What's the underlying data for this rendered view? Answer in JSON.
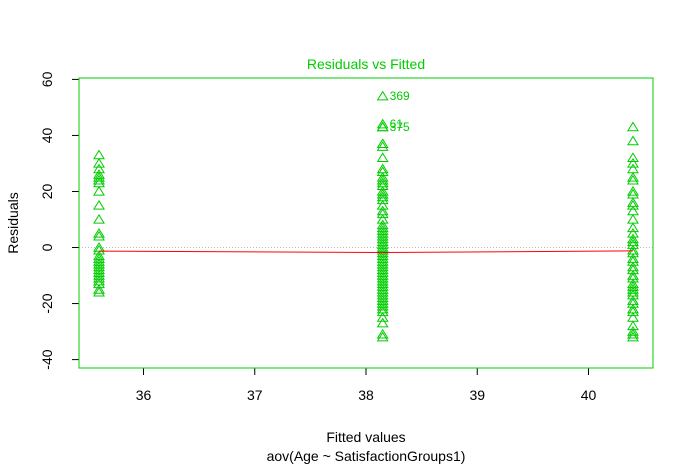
{
  "chart_data": {
    "type": "scatter",
    "title": "Residuals vs Fitted",
    "xlabel": "Fitted values",
    "subtitle": "aov(Age ~ SatisfactionGroups1)",
    "ylabel": "Residuals",
    "xlim": [
      35.42,
      40.58
    ],
    "ylim": [
      -43,
      60.5
    ],
    "xticks": [
      36,
      37,
      38,
      39,
      40
    ],
    "yticks": [
      -40,
      -20,
      0,
      20,
      40,
      60
    ],
    "grid": false,
    "reference_line": 0,
    "colors": {
      "points": "#00cc00",
      "title": "#00cc00",
      "frame": "#00cc00",
      "smooth": "#ff0000",
      "reference": "#bbbbbb"
    },
    "marker": "triangle-open",
    "groups": [
      {
        "x": 35.6,
        "residuals": [
          33,
          30,
          28,
          26,
          25,
          24,
          23,
          20,
          15,
          10,
          5,
          4,
          0,
          -1,
          -3,
          -4,
          -5,
          -6,
          -7,
          -8,
          -9,
          -10,
          -11,
          -12,
          -13,
          -15,
          -16
        ]
      },
      {
        "x": 38.15,
        "residuals": [
          54,
          44,
          43,
          43,
          37,
          36,
          32,
          28,
          27,
          25,
          24,
          23,
          22,
          20,
          19,
          18,
          17,
          15,
          13,
          12,
          10,
          8,
          7,
          6,
          5,
          4,
          3,
          2,
          1,
          0,
          -1,
          -2,
          -3,
          -4,
          -5,
          -6,
          -7,
          -8,
          -9,
          -10,
          -11,
          -12,
          -13,
          -14,
          -15,
          -16,
          -17,
          -18,
          -19,
          -20,
          -21,
          -22,
          -23,
          -25,
          -27,
          -31,
          -32
        ]
      },
      {
        "x": 40.4,
        "residuals": [
          43,
          38,
          32,
          30,
          28,
          25,
          24,
          20,
          19,
          16,
          15,
          13,
          10,
          7,
          5,
          3,
          2,
          1,
          -1,
          -2,
          -4,
          -5,
          -7,
          -8,
          -10,
          -11,
          -13,
          -14,
          -15,
          -16,
          -17,
          -19,
          -20,
          -22,
          -23,
          -25,
          -28,
          -30,
          -31,
          -32
        ]
      }
    ],
    "smooth_line": [
      {
        "x": 35.6,
        "y": -1.3
      },
      {
        "x": 38.15,
        "y": -1.8
      },
      {
        "x": 40.4,
        "y": -1.2
      }
    ],
    "annotations": [
      {
        "text": "369",
        "x": 38.15,
        "y": 54
      },
      {
        "text": "61",
        "x": 38.15,
        "y": 44
      },
      {
        "text": "375",
        "x": 38.15,
        "y": 43
      }
    ]
  }
}
